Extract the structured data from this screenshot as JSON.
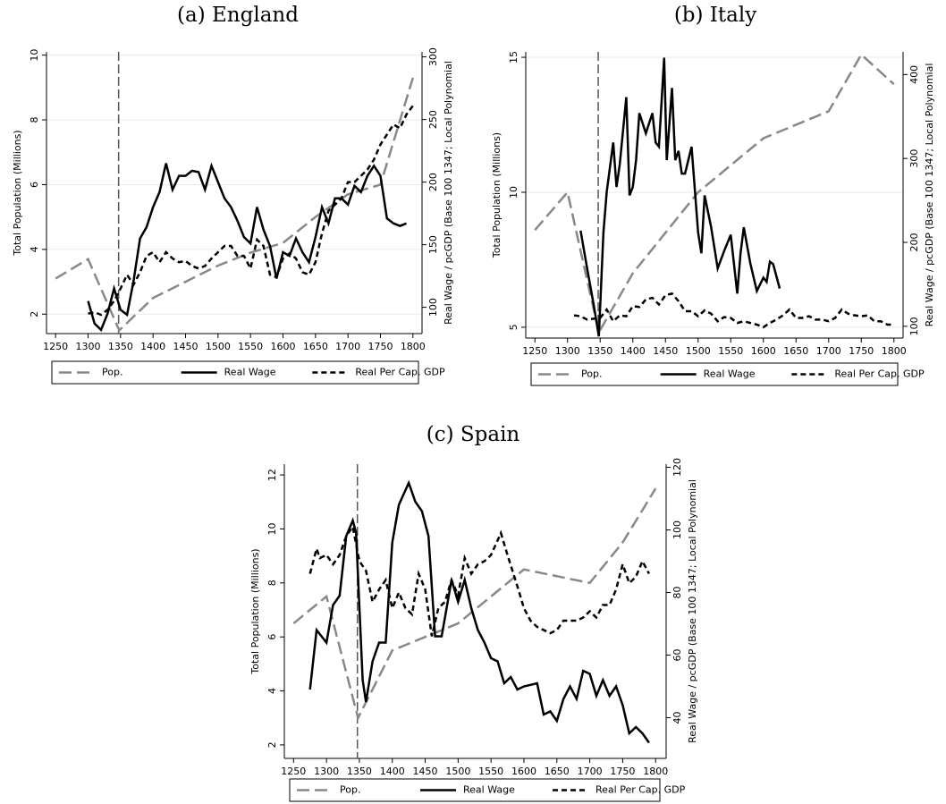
{
  "chart_data": [
    {
      "type": "line",
      "title": "(a) England",
      "ylabel": "Total Population (Millions)",
      "y2label": "Real Wage / pcGDP (Base 100 1347; Local Polynomial",
      "xlim": [
        1236,
        1814
      ],
      "xticks": [
        1250,
        1300,
        1350,
        1400,
        1450,
        1500,
        1550,
        1600,
        1650,
        1700,
        1750,
        1800
      ],
      "ylim": [
        1.4,
        10.1
      ],
      "yticks": [
        2,
        4,
        6,
        8,
        10
      ],
      "y2lim": [
        79,
        304
      ],
      "y2ticks": [
        100,
        150,
        200,
        250,
        300
      ],
      "grid": true,
      "vline": 1347,
      "series": [
        {
          "name": "Pop.",
          "color": "#888888",
          "linestyle": "dashed",
          "x": [
            1250,
            1300,
            1348,
            1400,
            1450,
            1500,
            1550,
            1600,
            1650,
            1700,
            1750,
            1800
          ],
          "values": [
            3.1,
            3.7,
            1.5,
            2.5,
            3.0,
            3.5,
            3.9,
            4.2,
            5.0,
            5.7,
            6.0,
            9.3
          ]
        },
        {
          "name": "Real Wage",
          "color": "#000000",
          "linestyle": "solid",
          "axis": "y2",
          "x": [
            1300,
            1310,
            1320,
            1330,
            1340,
            1350,
            1360,
            1370,
            1380,
            1390,
            1400,
            1410,
            1420,
            1430,
            1440,
            1450,
            1460,
            1470,
            1480,
            1490,
            1500,
            1510,
            1520,
            1530,
            1540,
            1550,
            1560,
            1570,
            1580,
            1590,
            1600,
            1610,
            1620,
            1630,
            1640,
            1650,
            1660,
            1670,
            1680,
            1690,
            1700,
            1710,
            1720,
            1730,
            1740,
            1750,
            1760,
            1770,
            1780,
            1790
          ],
          "values": [
            105,
            87,
            82,
            95,
            115,
            98,
            94,
            121,
            155,
            164,
            180,
            192,
            215,
            194,
            205,
            205,
            209,
            208,
            194,
            213,
            200,
            187,
            180,
            169,
            156,
            151,
            180,
            162,
            149,
            123,
            144,
            141,
            155,
            144,
            136,
            156,
            180,
            167,
            187,
            187,
            182,
            197,
            192,
            205,
            213,
            205,
            171,
            167,
            165,
            167
          ]
        },
        {
          "name": "Real Per Cap. GDP",
          "color": "#000000",
          "linestyle": "dotted",
          "axis": "y2",
          "x": [
            1300,
            1310,
            1320,
            1330,
            1340,
            1350,
            1360,
            1370,
            1380,
            1390,
            1400,
            1410,
            1420,
            1430,
            1440,
            1450,
            1460,
            1470,
            1480,
            1490,
            1500,
            1510,
            1520,
            1530,
            1540,
            1550,
            1560,
            1570,
            1580,
            1590,
            1600,
            1610,
            1620,
            1630,
            1640,
            1650,
            1660,
            1670,
            1680,
            1690,
            1700,
            1710,
            1720,
            1730,
            1740,
            1750,
            1760,
            1770,
            1780,
            1790,
            1800
          ],
          "values": [
            95,
            96,
            94,
            98,
            105,
            115,
            126,
            118,
            128,
            141,
            144,
            136,
            144,
            139,
            136,
            137,
            133,
            131,
            133,
            139,
            144,
            149,
            149,
            141,
            141,
            131,
            154,
            149,
            126,
            124,
            139,
            143,
            139,
            128,
            126,
            136,
            159,
            177,
            182,
            187,
            200,
            200,
            205,
            210,
            218,
            230,
            238,
            246,
            243,
            254,
            261
          ]
        }
      ]
    },
    {
      "type": "line",
      "title": "(b) Italy",
      "ylabel": "Total Population (Millions)",
      "y2label": "Real Wage / pcGDP (Base 100 1347; Local Polynomial",
      "xlim": [
        1236,
        1814
      ],
      "xticks": [
        1250,
        1300,
        1350,
        1400,
        1450,
        1500,
        1550,
        1600,
        1650,
        1700,
        1750,
        1800
      ],
      "ylim": [
        4.6,
        15.2
      ],
      "yticks": [
        5,
        10,
        15
      ],
      "y2lim": [
        86,
        427
      ],
      "y2ticks": [
        100,
        200,
        300,
        400
      ],
      "grid": true,
      "vline": 1347,
      "series": [
        {
          "name": "Pop.",
          "color": "#888888",
          "linestyle": "dashed",
          "x": [
            1250,
            1300,
            1348,
            1350,
            1400,
            1500,
            1600,
            1700,
            1750,
            1800
          ],
          "values": [
            8.6,
            10.0,
            4.8,
            4.9,
            7.0,
            10.0,
            12.0,
            13.0,
            15.1,
            14.0
          ]
        },
        {
          "name": "Real Wage",
          "color": "#000000",
          "linestyle": "solid",
          "axis": "y2",
          "x": [
            1320,
            1330,
            1340,
            1348,
            1355,
            1360,
            1370,
            1375,
            1380,
            1390,
            1395,
            1400,
            1405,
            1410,
            1420,
            1430,
            1435,
            1440,
            1448,
            1452,
            1460,
            1465,
            1470,
            1475,
            1480,
            1490,
            1500,
            1505,
            1510,
            1520,
            1530,
            1540,
            1550,
            1560,
            1565,
            1570,
            1580,
            1590,
            1600,
            1605,
            1610,
            1615,
            1625
          ],
          "values": [
            214,
            169,
            126,
            88,
            212,
            260,
            319,
            266,
            293,
            373,
            256,
            266,
            298,
            354,
            330,
            354,
            319,
            314,
            420,
            298,
            384,
            298,
            309,
            282,
            282,
            314,
            212,
            187,
            256,
            218,
            169,
            190,
            209,
            139,
            187,
            218,
            175,
            142,
            158,
            153,
            177,
            174,
            145
          ]
        },
        {
          "name": "Real Per Cap. GDP",
          "color": "#000000",
          "linestyle": "dotted",
          "axis": "y2",
          "x": [
            1310,
            1320,
            1330,
            1340,
            1350,
            1360,
            1370,
            1380,
            1390,
            1400,
            1410,
            1420,
            1430,
            1440,
            1450,
            1460,
            1470,
            1480,
            1490,
            1500,
            1510,
            1520,
            1530,
            1540,
            1550,
            1560,
            1570,
            1580,
            1590,
            1600,
            1610,
            1620,
            1630,
            1640,
            1650,
            1660,
            1670,
            1680,
            1690,
            1700,
            1710,
            1720,
            1730,
            1740,
            1750,
            1760,
            1770,
            1780,
            1790,
            1800
          ],
          "values": [
            113,
            112,
            108,
            109,
            110,
            120,
            106,
            113,
            112,
            124,
            123,
            132,
            134,
            126,
            137,
            139,
            130,
            118,
            118,
            112,
            119,
            115,
            106,
            111,
            110,
            104,
            106,
            104,
            102,
            99,
            104,
            108,
            113,
            120,
            110,
            110,
            112,
            108,
            108,
            106,
            110,
            120,
            115,
            113,
            112,
            113,
            106,
            106,
            102,
            102
          ]
        }
      ]
    },
    {
      "type": "line",
      "title": "(c) Spain",
      "ylabel": "Total Population (Millions)",
      "y2label": "Real Wage / pcGDP (Base 100 1347; Local Polynomial",
      "xlim": [
        1236,
        1816
      ],
      "xticks": [
        1250,
        1300,
        1350,
        1400,
        1450,
        1500,
        1550,
        1600,
        1650,
        1700,
        1750,
        1800
      ],
      "ylim": [
        1.5,
        12.4
      ],
      "yticks": [
        2,
        4,
        6,
        8,
        10,
        12
      ],
      "y2lim": [
        27,
        121
      ],
      "y2ticks": [
        40,
        60,
        80,
        100,
        120
      ],
      "grid": false,
      "vline": 1347,
      "series": [
        {
          "name": "Pop.",
          "color": "#888888",
          "linestyle": "dashed",
          "x": [
            1250,
            1300,
            1348,
            1400,
            1500,
            1600,
            1700,
            1750,
            1800
          ],
          "values": [
            6.5,
            7.5,
            3.0,
            5.5,
            6.5,
            8.5,
            8.0,
            9.5,
            11.5
          ]
        },
        {
          "name": "Real Wage",
          "color": "#000000",
          "linestyle": "solid",
          "axis": "y2",
          "x": [
            1275,
            1285,
            1300,
            1310,
            1320,
            1330,
            1340,
            1345,
            1355,
            1360,
            1370,
            1380,
            1390,
            1400,
            1410,
            1425,
            1435,
            1445,
            1455,
            1465,
            1475,
            1480,
            1490,
            1500,
            1510,
            1520,
            1530,
            1540,
            1550,
            1560,
            1570,
            1580,
            1590,
            1600,
            1620,
            1630,
            1640,
            1650,
            1660,
            1670,
            1680,
            1690,
            1700,
            1710,
            1720,
            1730,
            1740,
            1750,
            1760,
            1770,
            1780,
            1790
          ],
          "values": [
            49,
            68,
            64,
            76,
            79,
            98,
            103,
            99,
            52,
            45,
            58,
            64,
            64,
            96,
            108,
            115,
            109,
            106,
            98,
            66,
            66,
            72,
            84,
            77,
            84,
            75,
            68,
            64,
            59,
            58,
            51,
            53,
            49,
            50,
            51,
            41,
            42,
            39,
            46,
            50,
            46,
            55,
            54,
            47,
            52,
            47,
            50,
            44,
            35,
            37,
            35,
            32
          ]
        },
        {
          "name": "Real Per Cap. GDP",
          "color": "#000000",
          "linestyle": "dotted",
          "axis": "y2",
          "x": [
            1275,
            1285,
            1290,
            1300,
            1310,
            1320,
            1330,
            1340,
            1350,
            1360,
            1370,
            1380,
            1390,
            1400,
            1410,
            1420,
            1430,
            1440,
            1450,
            1460,
            1470,
            1480,
            1490,
            1500,
            1510,
            1520,
            1530,
            1540,
            1550,
            1565,
            1575,
            1590,
            1600,
            1610,
            1620,
            1640,
            1650,
            1660,
            1670,
            1680,
            1690,
            1700,
            1710,
            1720,
            1730,
            1740,
            1750,
            1760,
            1770,
            1780,
            1790
          ],
          "values": [
            86,
            94,
            91,
            92,
            89,
            92,
            98,
            101,
            90,
            87,
            77,
            81,
            84,
            75,
            80,
            75,
            73,
            86,
            81,
            66,
            75,
            77,
            84,
            79,
            91,
            86,
            89,
            90,
            92,
            99,
            92,
            82,
            75,
            71,
            69,
            67,
            68,
            71,
            71,
            71,
            72,
            74,
            72,
            76,
            76,
            81,
            89,
            83,
            85,
            90,
            86
          ]
        }
      ]
    }
  ]
}
